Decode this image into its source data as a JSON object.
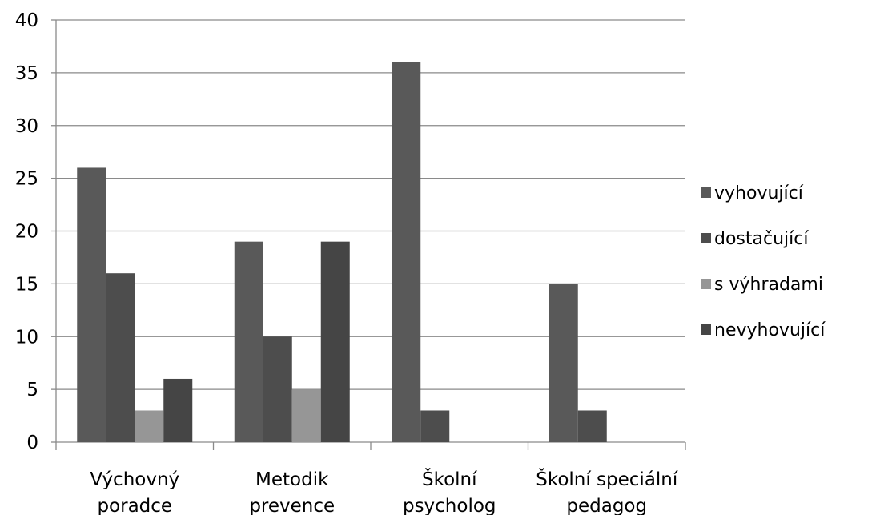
{
  "chart_data": {
    "type": "bar",
    "categories": [
      [
        "Výchovný",
        "poradce"
      ],
      [
        "Metodik",
        "prevence"
      ],
      [
        "Školní",
        "psycholog"
      ],
      [
        "Školní speciální",
        "pedagog"
      ]
    ],
    "series": [
      {
        "name": "vyhovující",
        "color": "#595959",
        "values": [
          26,
          19,
          36,
          15
        ]
      },
      {
        "name": "dostačující",
        "color": "#4d4d4d",
        "values": [
          16,
          10,
          3,
          3
        ]
      },
      {
        "name": "s výhradami",
        "color": "#969696",
        "values": [
          3,
          5,
          0,
          0
        ]
      },
      {
        "name": "nevyhovující",
        "color": "#454545",
        "values": [
          6,
          19,
          0,
          0
        ]
      }
    ],
    "ylim": [
      0,
      40
    ],
    "yticks": [
      0,
      5,
      10,
      15,
      20,
      25,
      30,
      35,
      40
    ],
    "grid": true,
    "legend_position": "right"
  }
}
